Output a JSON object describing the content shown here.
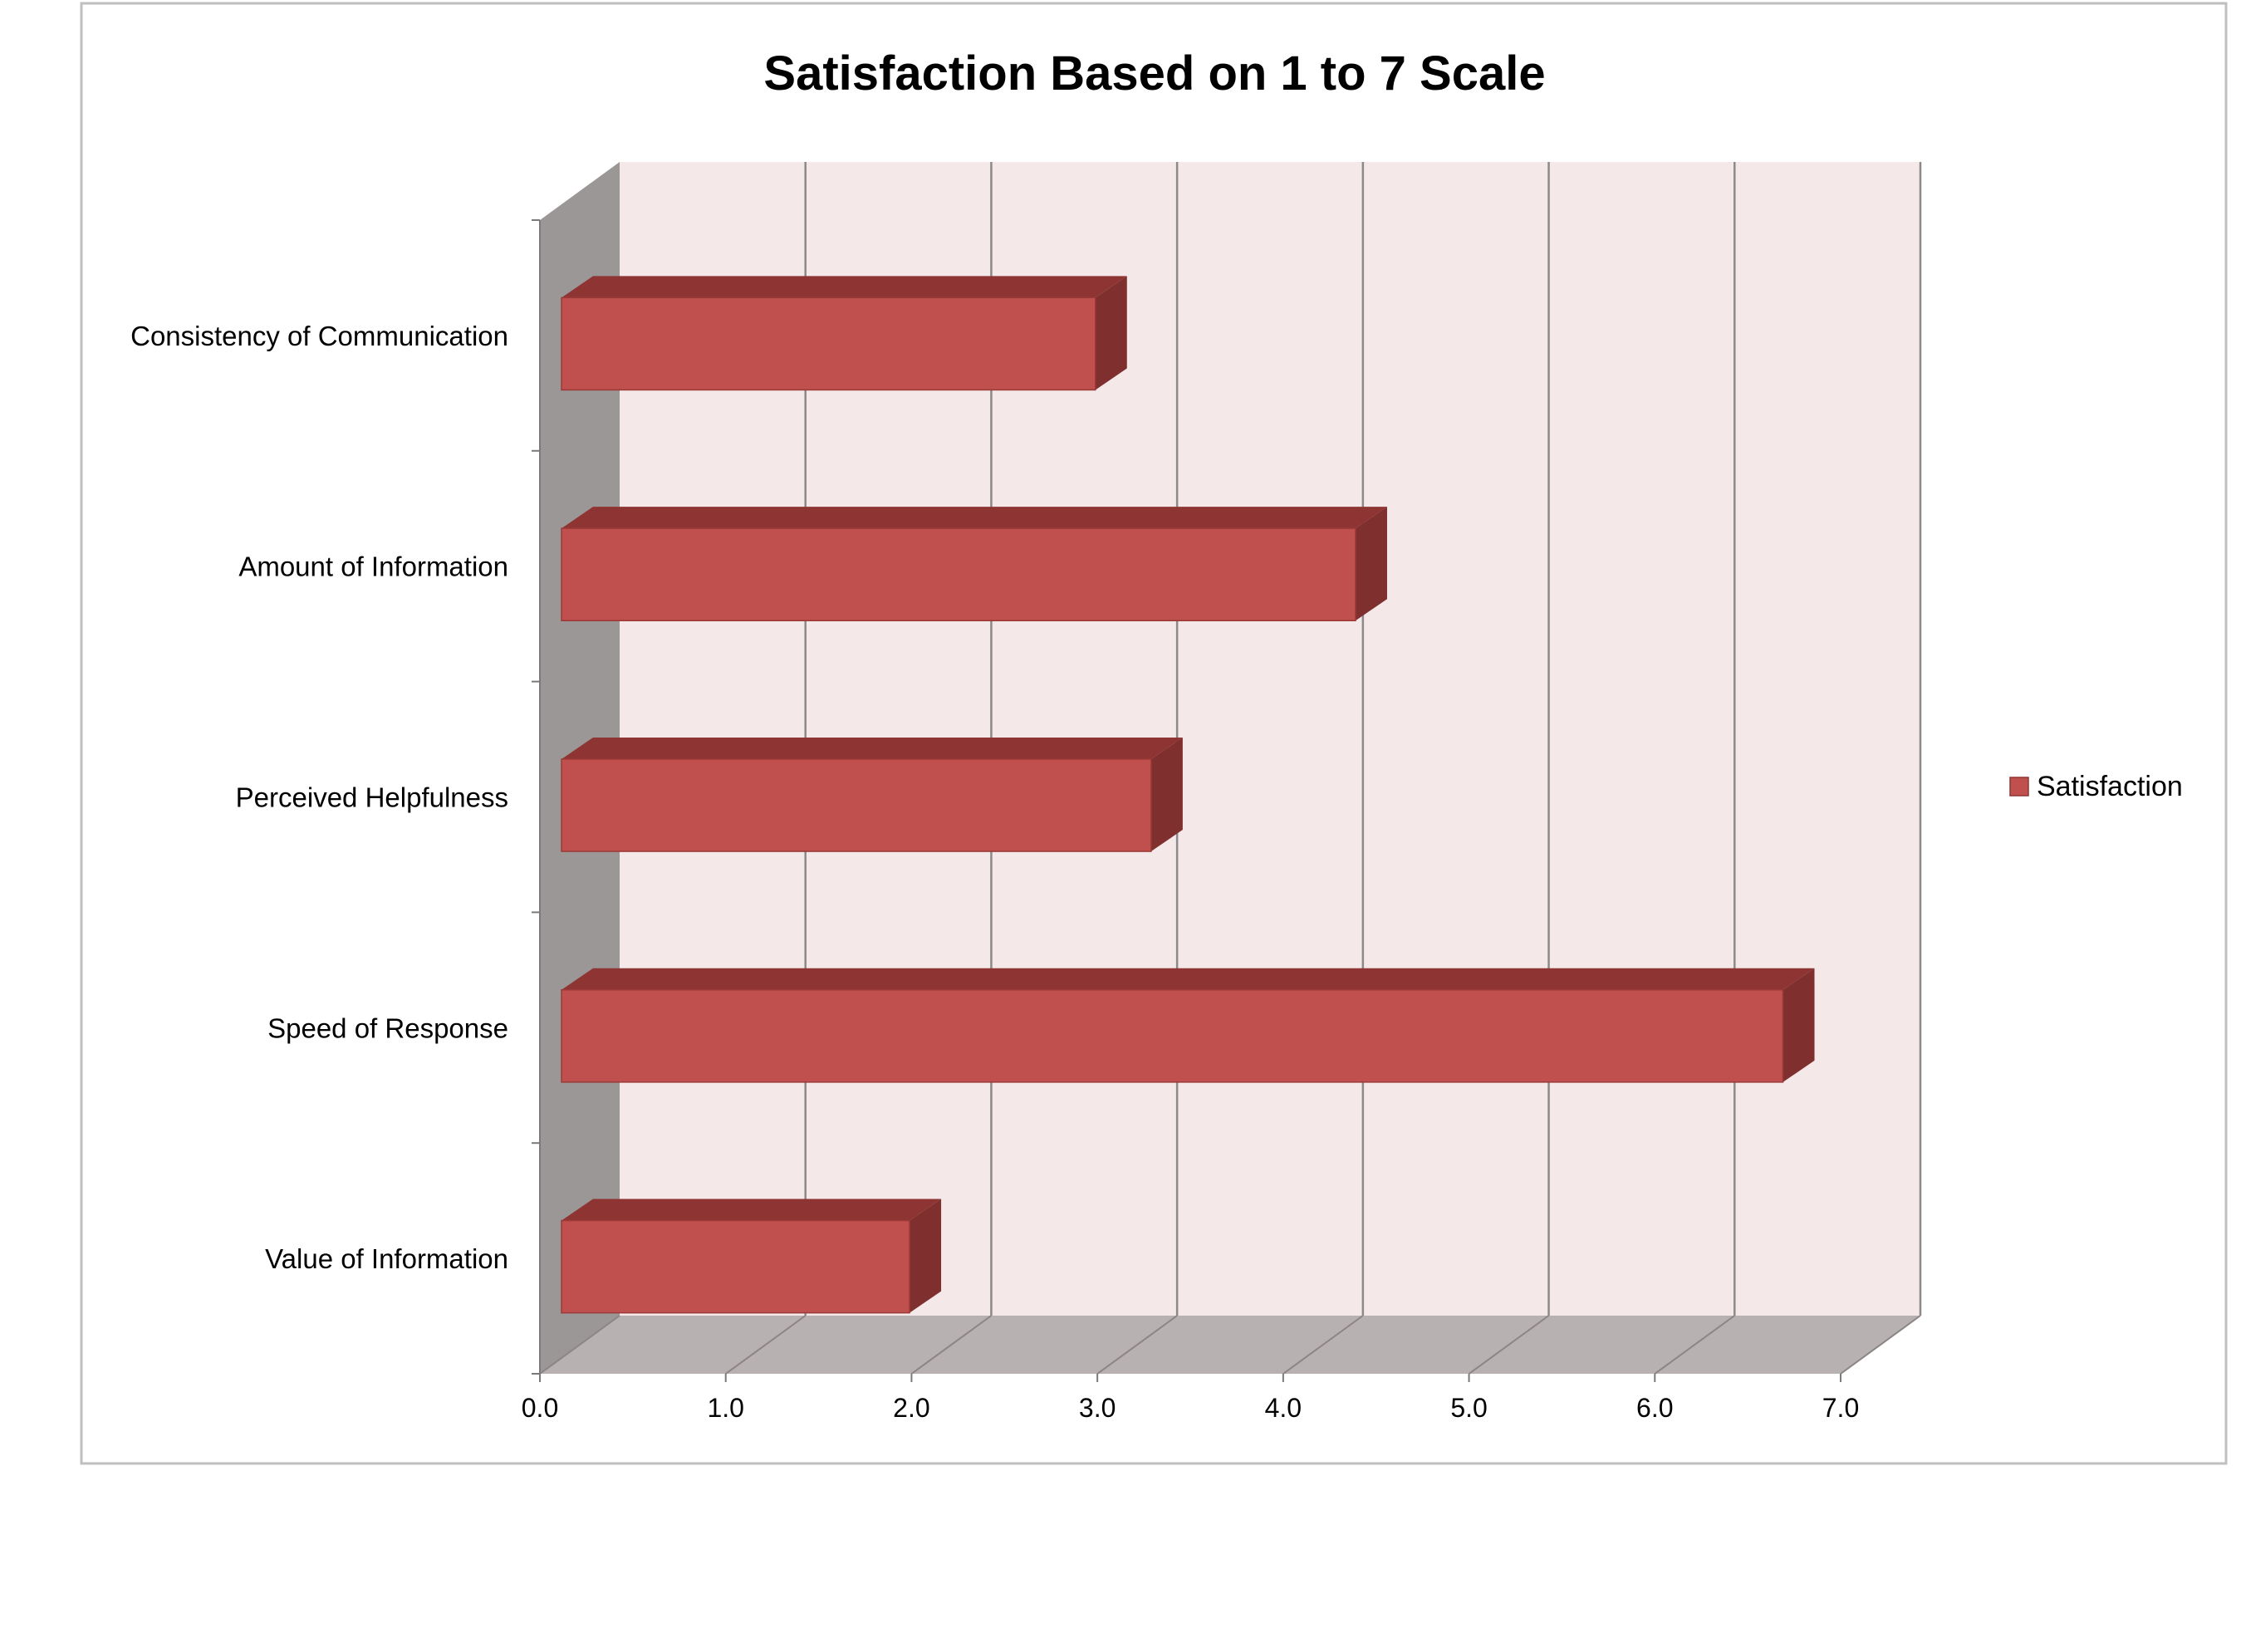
{
  "chart_data": {
    "type": "bar",
    "orientation": "horizontal",
    "style": "3d",
    "title": "Satisfaction Based on 1 to 7 Scale",
    "categories": [
      "Consistency of Communication",
      "Amount of Information",
      "Perceived Helpfulness",
      "Speed of Response",
      "Value of Information"
    ],
    "series": [
      {
        "name": "Satisfaction",
        "values": [
          2.9,
          4.3,
          3.2,
          6.6,
          1.9
        ],
        "color": "#c0504d"
      }
    ],
    "x_ticks": [
      "0.0",
      "1.0",
      "2.0",
      "3.0",
      "4.0",
      "5.0",
      "6.0",
      "7.0"
    ],
    "xlim": [
      0,
      7
    ],
    "grid": true,
    "legend_position": "right",
    "colors": {
      "bar_front": "#c0504d",
      "bar_top": "#8e3534",
      "bar_side": "#7f2f2e",
      "back_wall": "#f5e8e8",
      "side_wall": "#9c9797",
      "floor": "#b8b1b1",
      "gridline": "#8a8a8a",
      "frame": "#bfbfbf"
    }
  }
}
